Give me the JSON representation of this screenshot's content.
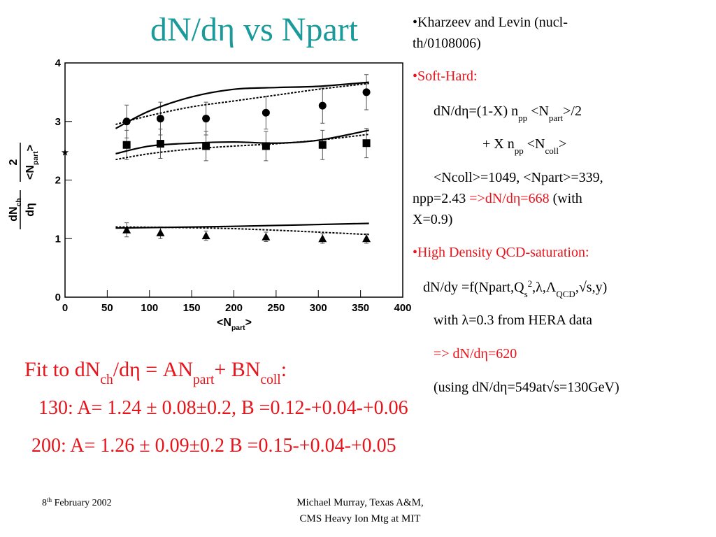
{
  "title": "dN/dη vs Npart",
  "chart_data": {
    "type": "scatter",
    "color": "#000000",
    "xlim": [
      0,
      400
    ],
    "ylim": [
      0,
      4
    ],
    "xticks": [
      0,
      50,
      100,
      150,
      200,
      250,
      300,
      350,
      400
    ],
    "yticks": [
      0,
      1,
      2,
      3,
      4
    ],
    "xlabel": [
      {
        "t": "<N"
      },
      {
        "t": "part",
        "s": "sub"
      },
      {
        "t": ">"
      }
    ],
    "ylabel": [
      {
        "num": [
          {
            "t": "dN"
          },
          {
            "t": "ch",
            "s": "sub"
          }
        ],
        "den": [
          {
            "t": "dη"
          }
        ]
      },
      {
        "num": [
          {
            "t": "2"
          }
        ],
        "den": [
          {
            "t": "<N"
          },
          {
            "t": "part",
            "s": "sub"
          },
          {
            "t": ">"
          }
        ]
      }
    ],
    "series": [
      {
        "marker": "circle",
        "x": [
          73,
          113,
          167,
          238,
          305,
          357
        ],
        "values": [
          3.0,
          3.05,
          3.05,
          3.15,
          3.27,
          3.5
        ],
        "errors": [
          0.28,
          0.28,
          0.28,
          0.28,
          0.3,
          0.3
        ]
      },
      {
        "marker": "square",
        "x": [
          73,
          113,
          167,
          238,
          305,
          357
        ],
        "values": [
          2.6,
          2.62,
          2.58,
          2.58,
          2.6,
          2.63
        ],
        "errors": [
          0.25,
          0.25,
          0.25,
          0.25,
          0.25,
          0.25
        ]
      },
      {
        "marker": "triangle",
        "x": [
          73,
          113,
          167,
          238,
          305,
          357
        ],
        "values": [
          1.15,
          1.1,
          1.05,
          1.03,
          1.0,
          1.0
        ],
        "errors": [
          0.12,
          0.1,
          0.08,
          0.08,
          0.08,
          0.08
        ]
      },
      {
        "marker": "star",
        "x": [
          0
        ],
        "values": [
          2.47
        ]
      },
      {
        "line": "solid",
        "x": [
          60,
          100,
          150,
          200,
          250,
          300,
          360
        ],
        "values": [
          2.88,
          3.18,
          3.42,
          3.55,
          3.58,
          3.6,
          3.67
        ]
      },
      {
        "line": "dotted",
        "x": [
          60,
          100,
          150,
          200,
          250,
          300,
          360
        ],
        "values": [
          2.95,
          3.1,
          3.25,
          3.35,
          3.45,
          3.55,
          3.65
        ]
      },
      {
        "line": "solid",
        "x": [
          60,
          100,
          150,
          200,
          250,
          300,
          360
        ],
        "values": [
          2.45,
          2.58,
          2.63,
          2.65,
          2.63,
          2.68,
          2.85
        ]
      },
      {
        "line": "dotted",
        "x": [
          60,
          100,
          150,
          200,
          250,
          300,
          360
        ],
        "values": [
          2.35,
          2.45,
          2.53,
          2.58,
          2.62,
          2.68,
          2.78
        ]
      },
      {
        "line": "solid",
        "x": [
          60,
          200,
          360
        ],
        "values": [
          1.18,
          1.21,
          1.26
        ]
      },
      {
        "line": "dotted",
        "x": [
          60,
          200,
          360
        ],
        "values": [
          1.2,
          1.17,
          1.07
        ]
      }
    ]
  },
  "notes": {
    "color": "#e8141b",
    "lines": [
      [
        {
          "t": "•Kharzeev and Levin (nucl-"
        }
      ],
      [
        {
          "t": "th/0108006)"
        }
      ],
      [
        {
          "t": "•Soft-Hard:",
          "hl": true
        }
      ],
      [
        {
          "t": "dN/dη=(1-X) n"
        },
        {
          "t": "pp",
          "s": "sub"
        },
        {
          "t": " <N"
        },
        {
          "t": "part",
          "s": "sub"
        },
        {
          "t": ">/2"
        }
      ],
      [
        {
          "t": "+ X  n"
        },
        {
          "t": "pp",
          "s": "sub"
        },
        {
          "t": " <N"
        },
        {
          "t": "coll",
          "s": "sub"
        },
        {
          "t": ">"
        }
      ],
      [
        {
          "t": "<Ncoll>=1049, <Npart>=339,"
        }
      ],
      [
        {
          "t": "npp=2.43  "
        },
        {
          "t": "=>dN/dη=668",
          "hl": true
        },
        {
          "t": " (with"
        }
      ],
      [
        {
          "t": "X=0.9)"
        }
      ],
      [
        {
          "t": "•High Density QCD-saturation:",
          "hl": true
        }
      ],
      [
        {
          "t": "dN/dy =f(Npart,Q"
        },
        {
          "t": "s",
          "s": "sub"
        },
        {
          "t": "2",
          "s": "sup"
        },
        {
          "t": ",λ,Λ"
        },
        {
          "t": "QCD",
          "s": "sub"
        },
        {
          "t": ",√s,y)"
        }
      ],
      [
        {
          "t": "with λ=0.3 from HERA data"
        }
      ],
      [
        {
          "t": "=> dN/dη=620",
          "hl": true
        }
      ],
      [
        {
          "t": "(using dN/dη=549at√s=130GeV)"
        }
      ]
    ]
  },
  "fit": {
    "color": "#e8141b",
    "lines": [
      [
        {
          "t": "Fit to dN"
        },
        {
          "t": "ch",
          "s": "sub"
        },
        {
          "t": "/dη = AN"
        },
        {
          "t": "part",
          "s": "sub"
        },
        {
          "t": "+ BN"
        },
        {
          "t": "coll",
          "s": "sub"
        },
        {
          "t": ":"
        }
      ],
      [
        {
          "t": "130: A= 1.24 ± 0.08±0.2, B =0.12-+0.04-+0.06"
        }
      ],
      [
        {
          "t": "200: A= 1.26 ± 0.09±0.2 B =0.15-+0.04-+0.05"
        }
      ]
    ]
  },
  "footer": {
    "date": [
      {
        "t": "8"
      },
      {
        "t": "th",
        "s": "sup"
      },
      {
        "t": " February 2002"
      }
    ],
    "author": [
      "Michael Murray, Texas A&M,",
      "CMS Heavy Ion Mtg at MIT"
    ]
  }
}
